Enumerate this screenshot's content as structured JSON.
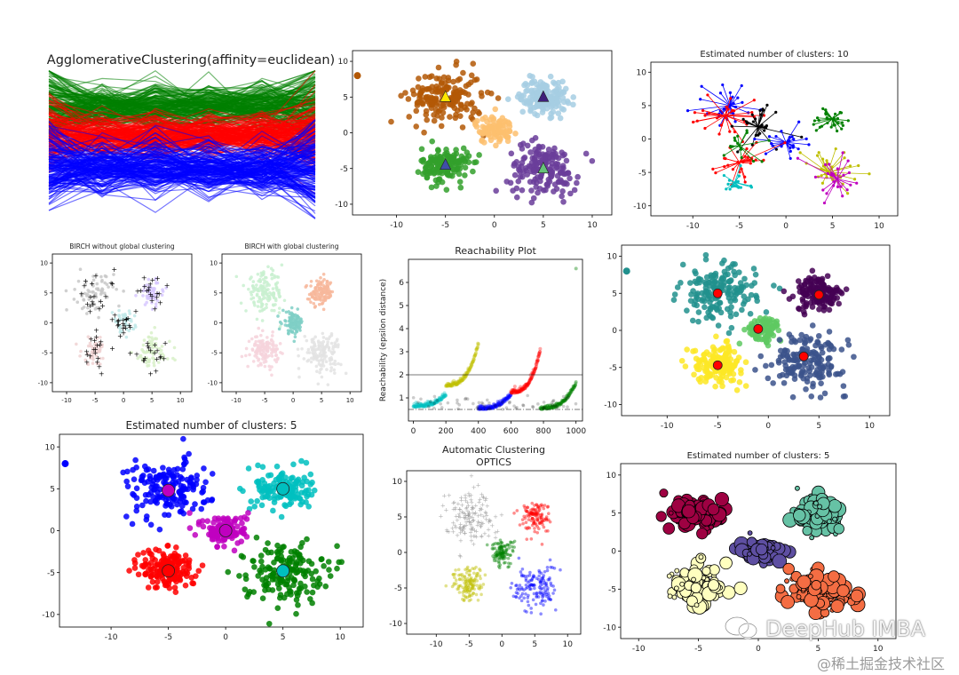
{
  "watermark": {
    "brand": "DeepHub IMBA",
    "sub": "@稀土掘金技术社区"
  },
  "colors": {
    "c_green": "#008000",
    "c_red": "#ff0000",
    "c_blue": "#0000ff",
    "c_cyan": "#00bfbf",
    "c_magenta": "#bf00bf",
    "c_yellow": "#bfbf00",
    "c_black": "#000000",
    "c_orange": "#ff9900",
    "c_purple": "#8e44ad",
    "brown": "#b35806",
    "lightblue": "#a6cee3",
    "tab_green": "#33a02c",
    "tab_purple": "#6a3d9a",
    "peach": "#fdbf6f",
    "viridis_purple": "#440154",
    "viridis_teal": "#21908d",
    "viridis_yellow": "#fde725",
    "viridis_blue": "#3b528b",
    "viridis_green": "#5ec962",
    "spectral_red": "#9e0142",
    "spectral_green": "#66c2a5",
    "spectral_purple": "#5e4fa2",
    "spectral_cream": "#ffffbf",
    "spectral_orange": "#f46d43"
  },
  "chart_data": [
    {
      "id": "agglo",
      "type": "line",
      "title": "AgglomerativeClustering(affinity=euclidean)",
      "series": [
        {
          "name": "cluster-green",
          "color": "#008000",
          "center": 0.25,
          "spread": 0.09
        },
        {
          "name": "cluster-red",
          "color": "#ff0000",
          "center": 0.44,
          "spread": 0.08
        },
        {
          "name": "cluster-blue",
          "color": "#0000ff",
          "center": 0.66,
          "spread": 0.1
        }
      ],
      "points_per_line": 6
    },
    {
      "id": "kmeans",
      "type": "scatter",
      "title": "",
      "xlim": [
        -14.5,
        12
      ],
      "ylim": [
        -11.5,
        11.5
      ],
      "xticks": [
        -10,
        -5,
        0,
        5,
        10
      ],
      "yticks": [
        -10,
        -5,
        0,
        5,
        10
      ],
      "clusters": [
        {
          "center": [
            -5,
            5
          ],
          "sd": 2.5,
          "n": 170,
          "color": "#b35806"
        },
        {
          "center": [
            5,
            5
          ],
          "sd": 1.6,
          "n": 160,
          "color": "#a6cee3"
        },
        {
          "center": [
            0,
            0.5
          ],
          "sd": 1.3,
          "n": 90,
          "color": "#fdbf6f"
        },
        {
          "center": [
            -5,
            -4.5
          ],
          "sd": 1.6,
          "n": 150,
          "color": "#33a02c"
        },
        {
          "center": [
            5,
            -5
          ],
          "sd": 2.4,
          "n": 170,
          "color": "#6a3d9a"
        }
      ],
      "outliers": [
        [
          -14,
          8
        ]
      ],
      "outlier_color": "#b35806",
      "markers": [
        {
          "x": -5,
          "y": 5,
          "color": "#ffe600"
        },
        {
          "x": 5,
          "y": 5,
          "color": "#3f1f7a"
        },
        {
          "x": -5,
          "y": -4.5,
          "color": "#3f4fa8"
        },
        {
          "x": 5,
          "y": -5,
          "color": "#66c27a"
        }
      ]
    },
    {
      "id": "affinity",
      "type": "scatter",
      "title": "Estimated number of clusters: 10",
      "xlim": [
        -14.5,
        12
      ],
      "ylim": [
        -11.5,
        11.5
      ],
      "xticks": [
        -10,
        -5,
        0,
        5,
        10
      ],
      "yticks": [
        -10,
        -5,
        0,
        5,
        10
      ],
      "clusters": [
        {
          "center": [
            -6,
            5
          ],
          "sd": 2.6,
          "n": 26,
          "color": "#0000ff"
        },
        {
          "center": [
            -6.5,
            3.5
          ],
          "sd": 2.6,
          "n": 26,
          "color": "#ff0000"
        },
        {
          "center": [
            -3,
            1.8
          ],
          "sd": 2.4,
          "n": 26,
          "color": "#000000"
        },
        {
          "center": [
            5,
            3
          ],
          "sd": 1.5,
          "n": 28,
          "color": "#008000"
        },
        {
          "center": [
            0,
            -0.5
          ],
          "sd": 1.4,
          "n": 22,
          "color": "#0000ff"
        },
        {
          "center": [
            -5,
            -3.5
          ],
          "sd": 1.8,
          "n": 26,
          "color": "#ff0000"
        },
        {
          "center": [
            -5.5,
            -6.5
          ],
          "sd": 1.2,
          "n": 18,
          "color": "#00bfbf"
        },
        {
          "center": [
            4.5,
            -5
          ],
          "sd": 2.6,
          "n": 32,
          "color": "#bfbf00"
        },
        {
          "center": [
            5.5,
            -6
          ],
          "sd": 2.6,
          "n": 24,
          "color": "#bf00bf"
        },
        {
          "center": [
            -5,
            -1
          ],
          "sd": 1.8,
          "n": 16,
          "color": "#008000"
        }
      ],
      "star": true
    },
    {
      "id": "birch1",
      "type": "scatter",
      "title": "BIRCH without global clustering",
      "xlim": [
        -12.5,
        12
      ],
      "ylim": [
        -11.5,
        11.5
      ],
      "xticks": [
        -10,
        -5,
        0,
        5,
        10
      ],
      "yticks": [
        -10,
        -5,
        0,
        5,
        10
      ],
      "clusters": [
        {
          "center": [
            -5,
            5
          ],
          "sd": 2.2,
          "n": 70,
          "color": "#c8c8c8"
        },
        {
          "center": [
            5,
            5
          ],
          "sd": 1.5,
          "n": 60,
          "color": "#d7c8ff"
        },
        {
          "center": [
            0,
            0
          ],
          "sd": 1.3,
          "n": 45,
          "color": "#bfe8e8"
        },
        {
          "center": [
            -5,
            -4.5
          ],
          "sd": 1.6,
          "n": 55,
          "color": "#f0d2d2"
        },
        {
          "center": [
            5,
            -5
          ],
          "sd": 2.2,
          "n": 70,
          "color": "#d8f0c8"
        }
      ],
      "centers_n": 95,
      "centers_color": "#000000"
    },
    {
      "id": "birch2",
      "type": "scatter",
      "title": "BIRCH with global clustering",
      "xlim": [
        -12.5,
        12
      ],
      "ylim": [
        -11.5,
        11.5
      ],
      "xticks": [
        -10,
        -5,
        0,
        5,
        10
      ],
      "yticks": [
        -10,
        -5,
        0,
        5,
        10
      ],
      "clusters": [
        {
          "center": [
            -5,
            5
          ],
          "sd": 2.2,
          "n": 150,
          "color": "#c9f0d0"
        },
        {
          "center": [
            5,
            5
          ],
          "sd": 1.4,
          "n": 120,
          "color": "#f7b79b"
        },
        {
          "center": [
            0,
            0
          ],
          "sd": 1.2,
          "n": 110,
          "color": "#7fcfc6"
        },
        {
          "center": [
            -5,
            -4.5
          ],
          "sd": 1.6,
          "n": 130,
          "color": "#f6d3dc"
        },
        {
          "center": [
            5,
            -5
          ],
          "sd": 2.2,
          "n": 140,
          "color": "#e3e3e3"
        }
      ]
    },
    {
      "id": "reach",
      "type": "scatter",
      "title": "Reachability Plot",
      "ylabel": "Reachability (epsilon distance)",
      "xlim": [
        -30,
        1040
      ],
      "ylim": [
        0,
        7
      ],
      "xticks": [
        0,
        200,
        400,
        600,
        800,
        1000
      ],
      "yticks": [
        1,
        2,
        3,
        4,
        5,
        6
      ],
      "segments": [
        {
          "x0": 0,
          "x1": 200,
          "y0": 0.6,
          "y1": 1.1,
          "color": "#00bfbf"
        },
        {
          "x0": 200,
          "x1": 400,
          "y0": 1.5,
          "y1": 3.3,
          "color": "#bfbf00"
        },
        {
          "x0": 400,
          "x1": 600,
          "y0": 0.5,
          "y1": 1.1,
          "color": "#0000ff"
        },
        {
          "x0": 600,
          "x1": 780,
          "y0": 1.2,
          "y1": 3.0,
          "color": "#ff0000"
        },
        {
          "x0": 780,
          "x1": 1000,
          "y0": 0.5,
          "y1": 1.6,
          "color": "#008000"
        }
      ],
      "hlines": [
        {
          "y": 2.0,
          "style": "solid"
        },
        {
          "y": 0.5,
          "style": "dashdot"
        }
      ],
      "tail_point": {
        "x": 1000,
        "y": 6.6
      }
    },
    {
      "id": "kmeans2",
      "type": "scatter",
      "title": "",
      "xlim": [
        -14.5,
        12
      ],
      "ylim": [
        -11.5,
        11.5
      ],
      "xticks": [
        -10,
        -5,
        0,
        5,
        10
      ],
      "yticks": [
        -10,
        -5,
        0,
        5,
        10
      ],
      "clusters": [
        {
          "center": [
            -5,
            5
          ],
          "sd": 2.5,
          "n": 170,
          "color": "#21908d"
        },
        {
          "center": [
            5,
            5
          ],
          "sd": 1.5,
          "n": 140,
          "color": "#440154"
        },
        {
          "center": [
            -0.5,
            0
          ],
          "sd": 1.2,
          "n": 90,
          "color": "#5ec962"
        },
        {
          "center": [
            -5,
            -4.5
          ],
          "sd": 1.6,
          "n": 150,
          "color": "#fde725"
        },
        {
          "center": [
            4,
            -4
          ],
          "sd": 2.4,
          "n": 170,
          "color": "#3b528b"
        }
      ],
      "outliers": [
        [
          -14,
          8
        ]
      ],
      "outlier_color": "#21908d",
      "markers": [
        {
          "x": -5,
          "y": 5,
          "color": "#ff0000"
        },
        {
          "x": 5,
          "y": 4.8,
          "color": "#ff0000"
        },
        {
          "x": -1,
          "y": 0.2,
          "color": "#ff0000"
        },
        {
          "x": -5,
          "y": -4.7,
          "color": "#ff0000"
        },
        {
          "x": 3.5,
          "y": -3.5,
          "color": "#ff0000"
        }
      ]
    },
    {
      "id": "meanshift",
      "type": "scatter",
      "title": "Estimated number of clusters: 5",
      "xlim": [
        -14.5,
        12
      ],
      "ylim": [
        -11.5,
        11.5
      ],
      "xticks": [
        -10,
        -5,
        0,
        5,
        10
      ],
      "yticks": [
        -10,
        -5,
        0,
        5,
        10
      ],
      "clusters": [
        {
          "center": [
            -5,
            5
          ],
          "sd": 2.4,
          "n": 170,
          "color": "#0000ff"
        },
        {
          "center": [
            5,
            5
          ],
          "sd": 1.6,
          "n": 140,
          "color": "#00bfbf"
        },
        {
          "center": [
            0,
            0
          ],
          "sd": 1.3,
          "n": 120,
          "color": "#bf00bf"
        },
        {
          "center": [
            -5,
            -4.5
          ],
          "sd": 1.6,
          "n": 170,
          "color": "#ff0000"
        },
        {
          "center": [
            5,
            -5
          ],
          "sd": 2.3,
          "n": 170,
          "color": "#008000"
        }
      ],
      "outliers": [
        [
          -14,
          8
        ]
      ],
      "outlier_color": "#0000ff",
      "markers": [
        {
          "x": -5,
          "y": 4.8,
          "color": "#bf00bf"
        },
        {
          "x": 5,
          "y": 5,
          "color": "#00bfbf"
        },
        {
          "x": 0,
          "y": 0,
          "color": "#bf00bf"
        },
        {
          "x": -5,
          "y": -4.8,
          "color": "#ff0000"
        },
        {
          "x": 5,
          "y": -4.8,
          "color": "#00bfbf"
        }
      ]
    },
    {
      "id": "optics",
      "type": "scatter",
      "title": "Automatic Clustering\nOPTICS",
      "xlim": [
        -14.5,
        12
      ],
      "ylim": [
        -11.5,
        11.5
      ],
      "xticks": [
        -10,
        -5,
        0,
        5,
        10
      ],
      "yticks": [
        -10,
        -5,
        0,
        5,
        10
      ],
      "clusters": [
        {
          "center": [
            -5,
            5
          ],
          "sd": 2.5,
          "n": 150,
          "color": "#a0a0a0",
          "noise": true
        },
        {
          "center": [
            5,
            5
          ],
          "sd": 1.5,
          "n": 120,
          "color": "#ff0000"
        },
        {
          "center": [
            0,
            0
          ],
          "sd": 1.2,
          "n": 110,
          "color": "#008000"
        },
        {
          "center": [
            -5,
            -4.5
          ],
          "sd": 1.6,
          "n": 130,
          "color": "#bfbf00"
        },
        {
          "center": [
            5,
            -5
          ],
          "sd": 2.2,
          "n": 140,
          "color": "#0000ff"
        }
      ]
    },
    {
      "id": "dbscan",
      "type": "scatter",
      "title": "Estimated number of clusters: 5",
      "xlim": [
        -11.5,
        11.5
      ],
      "ylim": [
        -11.5,
        11.5
      ],
      "xticks": [
        -10,
        -5,
        0,
        5,
        10
      ],
      "yticks": [
        -10,
        -5,
        0,
        5,
        10
      ],
      "clusters": [
        {
          "center": [
            -5,
            5
          ],
          "sd": 1.5,
          "n": 110,
          "color": "#9e0142"
        },
        {
          "center": [
            5,
            5
          ],
          "sd": 1.4,
          "n": 110,
          "color": "#66c2a5"
        },
        {
          "center": [
            0,
            0
          ],
          "sd": 1.1,
          "n": 90,
          "color": "#5e4fa2"
        },
        {
          "center": [
            -5,
            -4.5
          ],
          "sd": 1.5,
          "n": 110,
          "color": "#ffffbf"
        },
        {
          "center": [
            5,
            -5
          ],
          "sd": 1.6,
          "n": 110,
          "color": "#f46d43"
        }
      ],
      "big_markers": true
    }
  ]
}
